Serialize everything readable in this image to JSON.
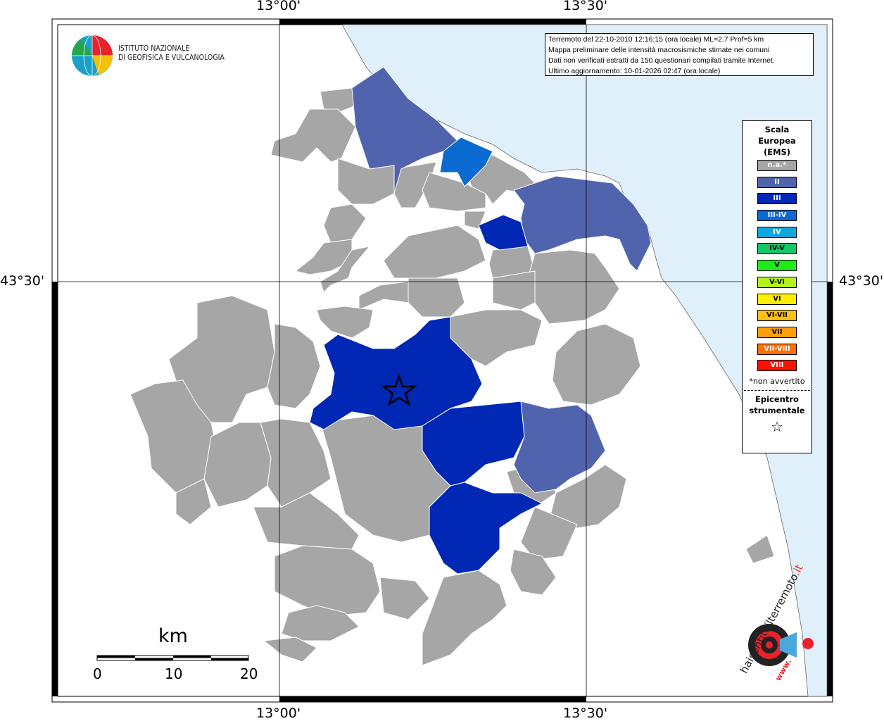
{
  "header_info": {
    "line1": "Terremoto del 22-10-2010 12:16:15 (ora locale) ML=2.7 Prof=5 km",
    "line2": "Mappa preliminare delle intensità macrosismiche stimate nei comuni",
    "line3": "Dati non verificati estratti da 150 questionari compilati tramite Internet.",
    "line4": "Ultimo aggiornamento: 10-01-2026 02:47 (ora locale)"
  },
  "logo": {
    "line1": "ISTITUTO NAZIONALE",
    "line2": "DI GEOFISICA E VULCANOLOGIA",
    "icon": "globe-icon"
  },
  "coordinates": {
    "lon_left": "13°00'",
    "lon_right": "13°30'",
    "lat": "43°30'"
  },
  "legend": {
    "title1": "Scala",
    "title2": "Europea",
    "title3": "(EMS)",
    "items": [
      {
        "label": "n.a.*",
        "color": "#a6a6a6",
        "text": "#ffffff"
      },
      {
        "label": "II",
        "color": "#5064ae",
        "text": "#ffffff"
      },
      {
        "label": "III",
        "color": "#0028b4",
        "text": "#ffffff"
      },
      {
        "label": "III-IV",
        "color": "#0a6ad2",
        "text": "#ffffff"
      },
      {
        "label": "IV",
        "color": "#11a6df",
        "text": "#ffffff"
      },
      {
        "label": "IV-V",
        "color": "#12c86b",
        "text": "#000000"
      },
      {
        "label": "V",
        "color": "#1eeb19",
        "text": "#000000"
      },
      {
        "label": "V-VI",
        "color": "#b4f019",
        "text": "#000000"
      },
      {
        "label": "VI",
        "color": "#ffee00",
        "text": "#000000"
      },
      {
        "label": "VI-VII",
        "color": "#ffbe14",
        "text": "#000000"
      },
      {
        "label": "VII",
        "color": "#ffa00a",
        "text": "#000000"
      },
      {
        "label": "VII-VIII",
        "color": "#ff6e00",
        "text": "#ffffff"
      },
      {
        "label": "VIII",
        "color": "#ff1000",
        "text": "#ffffff"
      }
    ],
    "na_note": "*non avvertito",
    "epicenter1": "Epicentro",
    "epicenter2": "strumentale",
    "star_icon": "☆"
  },
  "scale_bar": {
    "unit": "km",
    "ticks": [
      "0",
      "10",
      "20"
    ]
  },
  "watermark": {
    "text1": "haisentitoilterremoto",
    "text2": ".it",
    "text3": "www.",
    "icon": "seismic-target-icon"
  },
  "colors": {
    "sea": "#e0f0fb",
    "grey": "#a6a6a6",
    "ems2": "#5064ae",
    "ems3": "#0028b4",
    "ems34": "#0a6ad2"
  }
}
